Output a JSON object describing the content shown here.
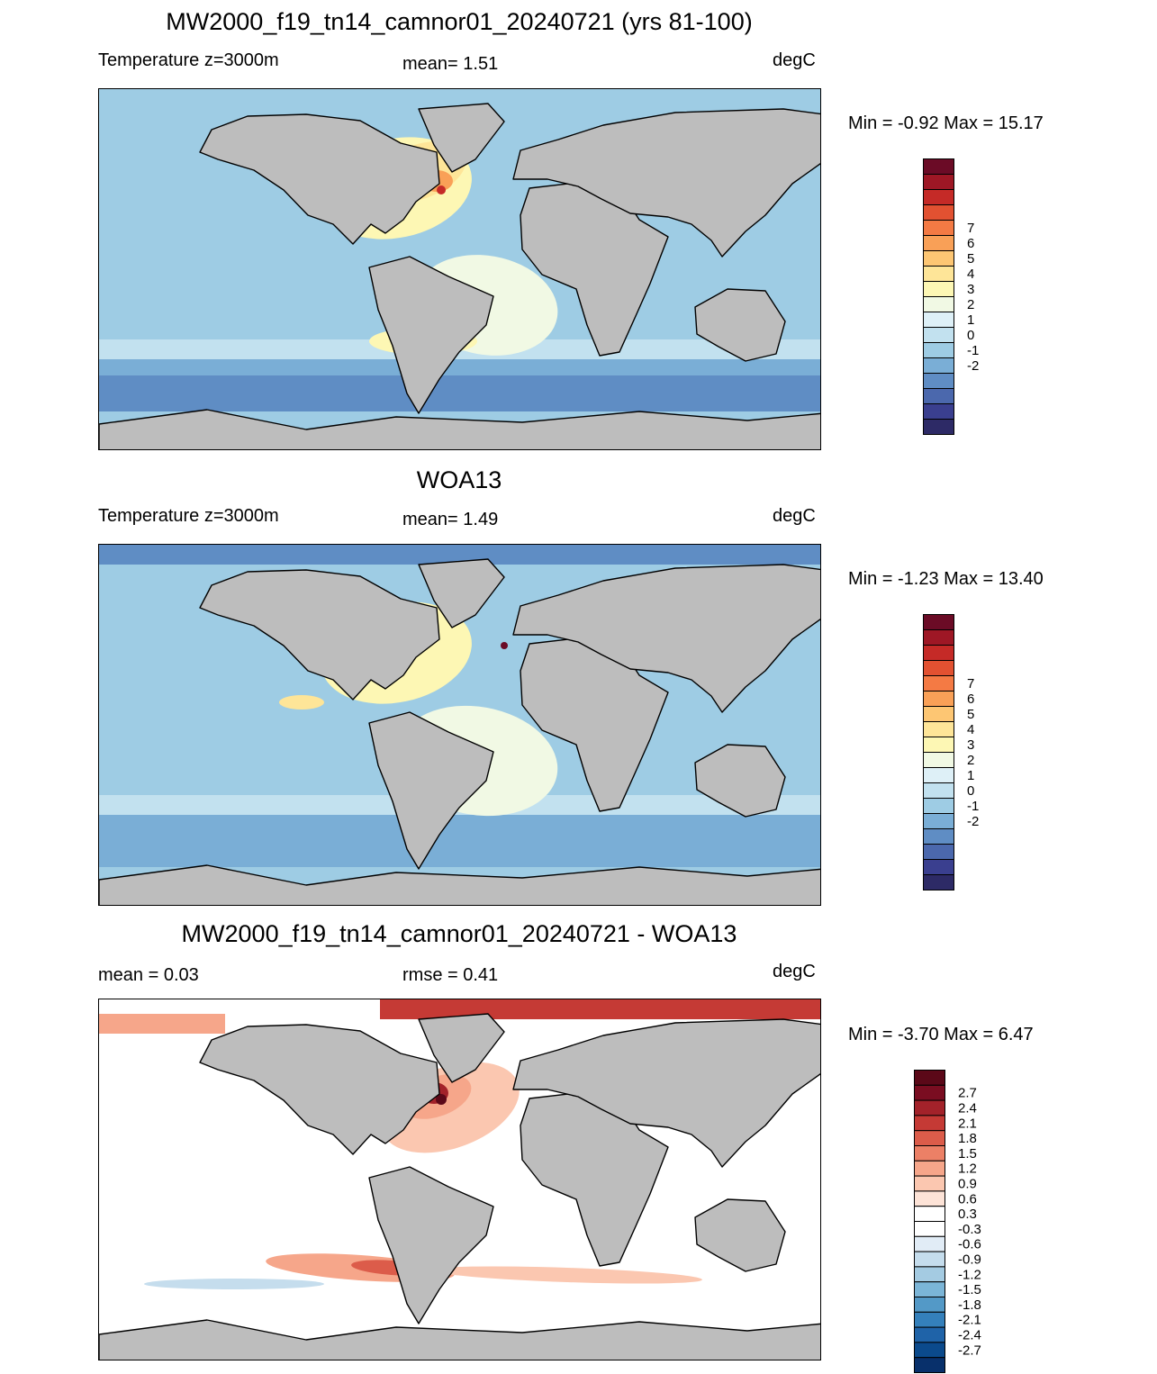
{
  "colors": {
    "land": "#bdbdbd",
    "coast": "#000000",
    "temp_scale": [
      "#2d2a66",
      "#3a3f8f",
      "#4b68ad",
      "#5f8dc4",
      "#7aaed6",
      "#9ecce4",
      "#c2e1ef",
      "#def0f7",
      "#f1f9e4",
      "#fdf7b4",
      "#fee598",
      "#fdc673",
      "#f9a057",
      "#f47a44",
      "#e25131",
      "#c52a27",
      "#9e1725",
      "#6b0b26"
    ],
    "diff_scale": [
      "#08306b",
      "#0b4a8c",
      "#1f63a8",
      "#3480bb",
      "#5399c7",
      "#7bb5d7",
      "#a4cbe2",
      "#c5dded",
      "#e1ecf6",
      "#ffffff",
      "#ffffff",
      "#fde3d7",
      "#fbc7b0",
      "#f6a68a",
      "#ec8066",
      "#dc5c4a",
      "#c53a35",
      "#a3222a",
      "#7a0d21",
      "#5b0818"
    ]
  },
  "panels": [
    {
      "title": "MW2000_f19_tn14_camnor01_20240721 (yrs 81-100)",
      "left_label": "Temperature z=3000m",
      "center_label": "mean=   1.51",
      "units": "degC",
      "minmax": "Min =  -0.92 Max =  15.17",
      "colorbar": {
        "ticks": [
          "7",
          "6",
          "5",
          "4",
          "3",
          "2",
          "1",
          "0",
          "-1",
          "-2"
        ],
        "palette": "temp_scale"
      },
      "field": "model"
    },
    {
      "title": "WOA13",
      "left_label": "Temperature z=3000m",
      "center_label": "mean=   1.49",
      "units": "degC",
      "minmax": "Min =  -1.23 Max =  13.40",
      "colorbar": {
        "ticks": [
          "7",
          "6",
          "5",
          "4",
          "3",
          "2",
          "1",
          "0",
          "-1",
          "-2"
        ],
        "palette": "temp_scale"
      },
      "field": "obs"
    },
    {
      "title": "MW2000_f19_tn14_camnor01_20240721 - WOA13",
      "left_label": "mean =   0.03",
      "center_label": "rmse =   0.41",
      "units": "degC",
      "minmax": "Min =  -3.70 Max =   6.47",
      "colorbar": {
        "ticks": [
          "2.7",
          "2.4",
          "2.1",
          "1.8",
          "1.5",
          "1.2",
          "0.9",
          "0.6",
          "0.3",
          "-0.3",
          "-0.6",
          "-0.9",
          "-1.2",
          "-1.5",
          "-1.8",
          "-2.1",
          "-2.4",
          "-2.7"
        ],
        "palette": "diff_scale"
      },
      "field": "diff"
    }
  ]
}
